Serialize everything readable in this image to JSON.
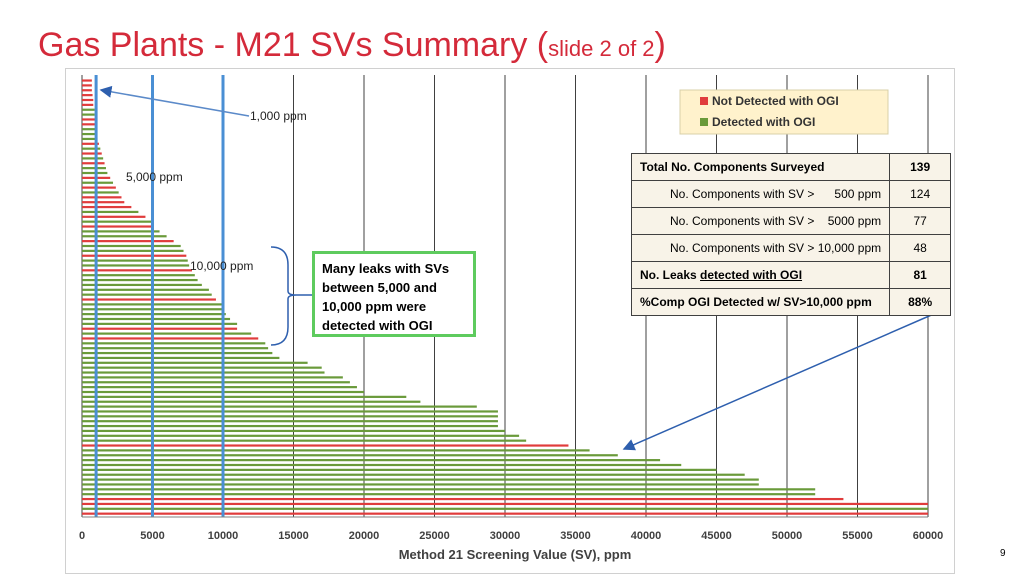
{
  "title": {
    "main": "Gas Plants - M21 SVs Summary (",
    "small": "slide 2 of 2",
    "close": ")"
  },
  "page_number": "9",
  "colors": {
    "title": "#d42a3a",
    "not_detected": "#e03c3c",
    "detected": "#6a9a3a",
    "ref_line": "#4a8fd4",
    "arrow": "#2e5fae",
    "legend_bg": "#fff2cc",
    "table_bg": "#f8f3e8",
    "callout_border": "#5ecb5e"
  },
  "callout": {
    "lines": [
      "Many leaks with SVs",
      "between 5,000 and",
      "10,000 ppm were",
      "detected with OGI"
    ]
  },
  "table": {
    "rows": [
      {
        "label": "Total No. Components Surveyed",
        "value": "139",
        "style": "bold"
      },
      {
        "label": "No. Components with SV >      500 ppm",
        "value": "124",
        "style": "sub"
      },
      {
        "label": "No. Components with SV >    5000 ppm",
        "value": "77",
        "style": "sub"
      },
      {
        "label": "No. Components with SV > 10,000 ppm",
        "value": "48",
        "style": "sub"
      },
      {
        "label_prefix": "No. Leaks ",
        "label_underlined": "detected with OGI",
        "value": "81",
        "style": "bold"
      },
      {
        "label": "%Comp OGI Detected w/ SV>10,000 ppm",
        "value": "88%",
        "style": "bold"
      }
    ]
  },
  "chart_data": {
    "type": "bar",
    "orientation": "horizontal",
    "xlabel": "Method 21 Screening Value (SV), ppm",
    "xlim": [
      0,
      60000
    ],
    "xticks": [
      0,
      5000,
      10000,
      15000,
      20000,
      25000,
      30000,
      35000,
      40000,
      45000,
      50000,
      55000,
      60000
    ],
    "xtick_labels": [
      "0",
      "5000",
      "10000",
      "15000",
      "20000",
      "25000",
      "30000",
      "35000",
      "40000",
      "45000",
      "50000",
      "55000",
      "60000"
    ],
    "grid": "vertical",
    "legend": {
      "position": "top-right",
      "entries": [
        {
          "label": "Not Detected with OGI",
          "color": "#e03c3c"
        },
        {
          "label": "Detected with OGI",
          "color": "#6a9a3a"
        }
      ]
    },
    "reference_lines": [
      {
        "x": 1000,
        "label": "1,000 ppm"
      },
      {
        "x": 5000,
        "label": "5,000 ppm"
      },
      {
        "x": 10000,
        "label": "10,000 ppm"
      }
    ],
    "bar_values": [
      700,
      700,
      700,
      750,
      800,
      800,
      900,
      900,
      1000,
      1000,
      1000,
      1000,
      1100,
      1200,
      1300,
      1400,
      1500,
      1600,
      1700,
      1800,
      2000,
      2200,
      2400,
      2600,
      2800,
      3000,
      3500,
      4000,
      4500,
      5000,
      5000,
      5500,
      6000,
      6500,
      7000,
      7200,
      7400,
      7500,
      7600,
      7800,
      8000,
      8200,
      8500,
      9000,
      9200,
      9500,
      10000,
      10000,
      10200,
      10500,
      11000,
      11000,
      12000,
      12500,
      13000,
      13200,
      13500,
      14000,
      16000,
      17000,
      17200,
      18500,
      19000,
      19500,
      20000,
      23000,
      24000,
      28000,
      29500,
      29500,
      29500,
      29500,
      30000,
      31000,
      31500,
      34500,
      36000,
      38000,
      41000,
      42500,
      45000,
      47000,
      48000,
      48000,
      52000,
      52000,
      54000,
      60000,
      60000,
      60000
    ],
    "bar_detected": [
      0,
      0,
      0,
      0,
      0,
      0,
      1,
      1,
      0,
      0,
      1,
      1,
      1,
      0,
      1,
      0,
      1,
      0,
      1,
      1,
      0,
      1,
      0,
      1,
      0,
      0,
      0,
      1,
      0,
      1,
      0,
      1,
      1,
      0,
      1,
      1,
      0,
      1,
      1,
      0,
      1,
      1,
      1,
      1,
      1,
      0,
      1,
      1,
      1,
      1,
      1,
      0,
      1,
      0,
      1,
      1,
      1,
      1,
      1,
      1,
      1,
      1,
      1,
      1,
      1,
      1,
      1,
      1,
      1,
      1,
      1,
      1,
      1,
      1,
      1,
      0,
      1,
      1,
      1,
      1,
      1,
      1,
      1,
      1,
      1,
      1,
      0,
      0,
      1,
      0
    ]
  }
}
